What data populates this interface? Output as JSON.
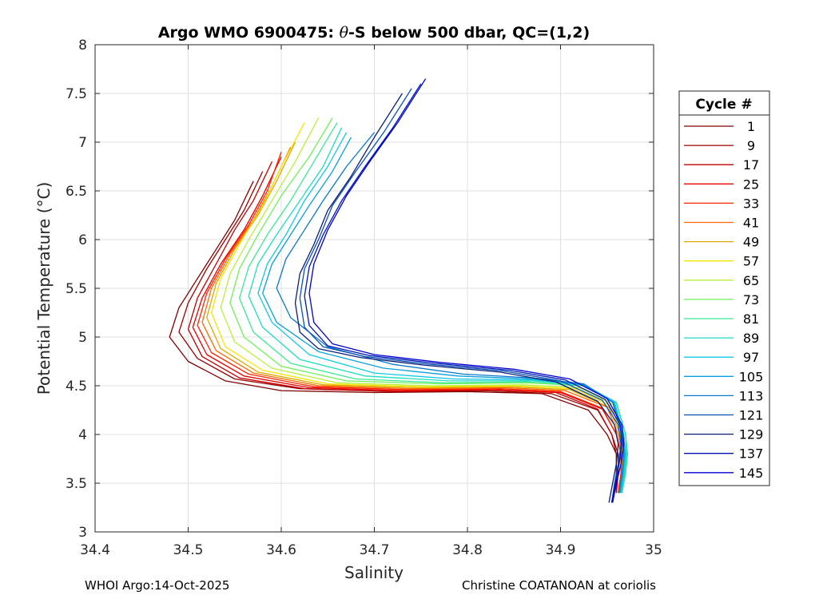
{
  "chart_data": {
    "type": "line",
    "title_prefix": "Argo WMO 6900475: ",
    "title_symbol": "θ",
    "title_suffix": "-S below 500 dbar,  QC=(1,2)",
    "xlabel": "Salinity",
    "ylabel": "Potential Temperature (°C)",
    "xlim": [
      34.4,
      35.0
    ],
    "ylim": [
      3,
      8
    ],
    "xticks": [
      34.4,
      34.5,
      34.6,
      34.7,
      34.8,
      34.9,
      35
    ],
    "xtick_labels": [
      "34.4",
      "34.5",
      "34.6",
      "34.7",
      "34.8",
      "34.9",
      "35"
    ],
    "yticks": [
      3,
      3.5,
      4,
      4.5,
      5,
      5.5,
      6,
      6.5,
      7,
      7.5,
      8
    ],
    "ytick_labels": [
      "3",
      "3.5",
      "4",
      "4.5",
      "5",
      "5.5",
      "6",
      "6.5",
      "7",
      "7.5",
      "8"
    ],
    "grid": true,
    "legend": {
      "title": "Cycle #",
      "location": "right",
      "entries": [
        {
          "label": "1",
          "color": "#7f0000"
        },
        {
          "label": "9",
          "color": "#9c0000"
        },
        {
          "label": "17",
          "color": "#c00000"
        },
        {
          "label": "25",
          "color": "#e60000"
        },
        {
          "label": "33",
          "color": "#ff2400"
        },
        {
          "label": "41",
          "color": "#ff6a00"
        },
        {
          "label": "49",
          "color": "#e0a800"
        },
        {
          "label": "57",
          "color": "#f5e600"
        },
        {
          "label": "65",
          "color": "#b8f03c"
        },
        {
          "label": "73",
          "color": "#6ff05a"
        },
        {
          "label": "81",
          "color": "#3ce896"
        },
        {
          "label": "89",
          "color": "#20dcc0"
        },
        {
          "label": "97",
          "color": "#10c8e6"
        },
        {
          "label": "105",
          "color": "#0aa0dc"
        },
        {
          "label": "113",
          "color": "#0a78c8"
        },
        {
          "label": "121",
          "color": "#0a50b4"
        },
        {
          "label": "129",
          "color": "#0a1e78"
        },
        {
          "label": "137",
          "color": "#0014b4"
        },
        {
          "label": "145",
          "color": "#0000d2"
        }
      ]
    },
    "series": [
      {
        "name": "1",
        "color": "#7f0000",
        "x": [
          34.57,
          34.55,
          34.53,
          34.51,
          34.49,
          34.48,
          34.5,
          34.54,
          34.6,
          34.7,
          34.8,
          34.88,
          34.93,
          34.95,
          34.96,
          34.96,
          34.96
        ],
        "y": [
          6.6,
          6.2,
          5.9,
          5.6,
          5.3,
          5.0,
          4.75,
          4.55,
          4.45,
          4.43,
          4.44,
          4.42,
          4.25,
          4.0,
          3.8,
          3.6,
          3.4
        ]
      },
      {
        "name": "9",
        "color": "#9c0000",
        "x": [
          34.58,
          34.56,
          34.54,
          34.52,
          34.5,
          34.49,
          34.51,
          34.55,
          34.62,
          34.72,
          34.82,
          34.89,
          34.94,
          34.955,
          34.96,
          34.96,
          34.96
        ],
        "y": [
          6.7,
          6.3,
          6.0,
          5.7,
          5.35,
          5.05,
          4.78,
          4.57,
          4.47,
          4.44,
          4.45,
          4.42,
          4.25,
          4.0,
          3.8,
          3.6,
          3.4
        ]
      },
      {
        "name": "17",
        "color": "#c00000",
        "x": [
          34.59,
          34.57,
          34.55,
          34.53,
          34.51,
          34.5,
          34.515,
          34.555,
          34.625,
          34.725,
          34.825,
          34.895,
          34.94,
          34.955,
          34.962,
          34.962,
          34.96
        ],
        "y": [
          6.8,
          6.4,
          6.1,
          5.75,
          5.4,
          5.08,
          4.8,
          4.58,
          4.47,
          4.44,
          4.46,
          4.43,
          4.26,
          4.0,
          3.8,
          3.6,
          3.4
        ]
      },
      {
        "name": "25",
        "color": "#e60000",
        "x": [
          34.6,
          34.58,
          34.56,
          34.535,
          34.515,
          34.505,
          34.52,
          34.56,
          34.63,
          34.73,
          34.83,
          34.9,
          34.945,
          34.96,
          34.965,
          34.965,
          34.962
        ],
        "y": [
          6.85,
          6.45,
          6.1,
          5.75,
          5.4,
          5.1,
          4.82,
          4.6,
          4.48,
          4.45,
          4.46,
          4.43,
          4.26,
          4.0,
          3.8,
          3.6,
          3.4
        ]
      },
      {
        "name": "33",
        "color": "#ff2400",
        "x": [
          34.6,
          34.585,
          34.565,
          34.54,
          34.52,
          34.51,
          34.525,
          34.565,
          34.635,
          34.735,
          34.835,
          34.9,
          34.945,
          34.96,
          34.965,
          34.965,
          34.962
        ],
        "y": [
          6.9,
          6.5,
          6.15,
          5.8,
          5.45,
          5.12,
          4.84,
          4.62,
          4.49,
          4.46,
          4.47,
          4.44,
          4.27,
          4.0,
          3.8,
          3.6,
          3.4
        ]
      },
      {
        "name": "41",
        "color": "#ff6a00",
        "x": [
          34.61,
          34.59,
          34.57,
          34.545,
          34.525,
          34.515,
          34.53,
          34.57,
          34.64,
          34.74,
          34.84,
          34.905,
          34.95,
          34.962,
          34.966,
          34.966,
          34.963
        ],
        "y": [
          6.95,
          6.55,
          6.2,
          5.85,
          5.5,
          5.15,
          4.86,
          4.63,
          4.5,
          4.47,
          4.48,
          4.45,
          4.28,
          4.0,
          3.8,
          3.6,
          3.4
        ]
      },
      {
        "name": "49",
        "color": "#e0a800",
        "x": [
          34.615,
          34.595,
          34.575,
          34.55,
          34.53,
          34.52,
          34.535,
          34.575,
          34.645,
          34.745,
          34.845,
          34.91,
          34.952,
          34.964,
          34.967,
          34.966,
          34.963
        ],
        "y": [
          7.0,
          6.6,
          6.25,
          5.9,
          5.55,
          5.2,
          4.88,
          4.64,
          4.51,
          4.48,
          4.49,
          4.46,
          4.28,
          4.0,
          3.8,
          3.6,
          3.4
        ]
      },
      {
        "name": "57",
        "color": "#f5e600",
        "x": [
          34.625,
          34.6,
          34.58,
          34.555,
          34.535,
          34.525,
          34.54,
          34.58,
          34.65,
          34.75,
          34.85,
          34.915,
          34.955,
          34.965,
          34.968,
          34.967,
          34.964
        ],
        "y": [
          7.2,
          6.75,
          6.35,
          5.95,
          5.6,
          5.25,
          4.9,
          4.66,
          4.52,
          4.49,
          4.5,
          4.47,
          4.29,
          4.0,
          3.8,
          3.6,
          3.4
        ]
      },
      {
        "name": "65",
        "color": "#b8f03c",
        "x": [
          34.64,
          34.615,
          34.59,
          34.565,
          34.545,
          34.535,
          34.55,
          34.59,
          34.66,
          34.76,
          34.86,
          34.92,
          34.958,
          34.968,
          34.97,
          34.969,
          34.965
        ],
        "y": [
          7.25,
          6.8,
          6.4,
          6.0,
          5.65,
          5.3,
          4.95,
          4.68,
          4.53,
          4.5,
          4.51,
          4.48,
          4.3,
          4.0,
          3.8,
          3.6,
          3.4
        ]
      },
      {
        "name": "73",
        "color": "#6ff05a",
        "x": [
          34.655,
          34.63,
          34.6,
          34.575,
          34.555,
          34.545,
          34.56,
          34.6,
          34.67,
          34.77,
          34.865,
          34.925,
          34.96,
          34.97,
          34.972,
          34.97,
          34.966
        ],
        "y": [
          7.25,
          6.85,
          6.45,
          6.05,
          5.7,
          5.35,
          5.0,
          4.7,
          4.55,
          4.52,
          4.53,
          4.5,
          4.32,
          4.0,
          3.8,
          3.6,
          3.4
        ]
      },
      {
        "name": "81",
        "color": "#3ce896",
        "x": [
          34.66,
          34.635,
          34.61,
          34.585,
          34.565,
          34.555,
          34.57,
          34.61,
          34.68,
          34.775,
          34.865,
          34.925,
          34.96,
          34.97,
          34.972,
          34.97,
          34.966
        ],
        "y": [
          7.2,
          6.8,
          6.4,
          6.05,
          5.72,
          5.4,
          5.05,
          4.73,
          4.57,
          4.53,
          4.54,
          4.5,
          4.32,
          4.0,
          3.8,
          3.6,
          3.4
        ]
      },
      {
        "name": "89",
        "color": "#20dcc0",
        "x": [
          34.665,
          34.645,
          34.62,
          34.595,
          34.575,
          34.565,
          34.58,
          34.62,
          34.69,
          34.78,
          34.87,
          34.925,
          34.96,
          34.97,
          34.971,
          34.969,
          34.966
        ],
        "y": [
          7.15,
          6.75,
          6.4,
          6.05,
          5.75,
          5.42,
          5.1,
          4.77,
          4.6,
          4.55,
          4.55,
          4.51,
          4.33,
          4.0,
          3.8,
          3.6,
          3.4
        ]
      },
      {
        "name": "97",
        "color": "#10c8e6",
        "x": [
          34.67,
          34.65,
          34.625,
          34.605,
          34.585,
          34.575,
          34.59,
          34.63,
          34.7,
          34.785,
          34.87,
          34.925,
          34.958,
          34.968,
          34.97,
          34.968,
          34.965
        ],
        "y": [
          7.1,
          6.75,
          6.4,
          6.05,
          5.75,
          5.45,
          5.15,
          4.82,
          4.63,
          4.57,
          4.56,
          4.51,
          4.33,
          4.0,
          3.8,
          3.6,
          3.4
        ]
      },
      {
        "name": "105",
        "color": "#0aa0dc",
        "x": [
          34.675,
          34.655,
          34.63,
          34.61,
          34.59,
          34.58,
          34.595,
          34.64,
          34.71,
          34.79,
          34.87,
          34.925,
          34.957,
          34.967,
          34.969,
          34.967,
          34.964
        ],
        "y": [
          7.05,
          6.7,
          6.35,
          6.05,
          5.75,
          5.45,
          5.15,
          4.85,
          4.68,
          4.6,
          4.57,
          4.51,
          4.33,
          4.0,
          3.8,
          3.6,
          3.4
        ]
      },
      {
        "name": "113",
        "color": "#0a78c8",
        "x": [
          34.7,
          34.67,
          34.645,
          34.625,
          34.605,
          34.595,
          34.61,
          34.65,
          34.72,
          34.795,
          34.87,
          34.925,
          34.956,
          34.966,
          34.968,
          34.966,
          34.963
        ],
        "y": [
          7.1,
          6.75,
          6.4,
          6.1,
          5.8,
          5.5,
          5.2,
          4.9,
          4.72,
          4.62,
          4.58,
          4.52,
          4.33,
          4.0,
          3.8,
          3.6,
          3.4
        ]
      },
      {
        "name": "121",
        "color": "#0a50b4",
        "x": [
          34.74,
          34.71,
          34.68,
          34.655,
          34.64,
          34.625,
          34.62,
          34.625,
          34.645,
          34.69,
          34.76,
          34.84,
          34.9,
          34.945,
          34.962,
          34.965,
          34.962,
          34.958,
          34.955
        ],
        "y": [
          7.55,
          7.1,
          6.7,
          6.35,
          6.0,
          5.7,
          5.4,
          5.1,
          4.9,
          4.8,
          4.72,
          4.65,
          4.55,
          4.35,
          4.1,
          3.9,
          3.7,
          3.5,
          3.3
        ]
      },
      {
        "name": "129",
        "color": "#0a1e78",
        "x": [
          34.73,
          34.7,
          34.675,
          34.65,
          34.635,
          34.62,
          34.615,
          34.62,
          34.64,
          34.685,
          34.755,
          34.835,
          34.895,
          34.94,
          34.958,
          34.962,
          34.96,
          34.956,
          34.952
        ],
        "y": [
          7.5,
          7.05,
          6.65,
          6.3,
          5.95,
          5.65,
          5.35,
          5.05,
          4.88,
          4.79,
          4.71,
          4.64,
          4.54,
          4.34,
          4.1,
          3.9,
          3.7,
          3.5,
          3.3
        ]
      },
      {
        "name": "137",
        "color": "#0014b4",
        "x": [
          34.75,
          34.72,
          34.69,
          34.665,
          34.645,
          34.63,
          34.625,
          34.63,
          34.65,
          34.695,
          34.765,
          34.845,
          34.905,
          34.948,
          34.964,
          34.966,
          34.963,
          34.959,
          34.955
        ],
        "y": [
          7.6,
          7.15,
          6.75,
          6.4,
          6.05,
          5.72,
          5.42,
          5.12,
          4.91,
          4.81,
          4.73,
          4.66,
          4.56,
          4.36,
          4.1,
          3.9,
          3.7,
          3.5,
          3.3
        ]
      },
      {
        "name": "145",
        "color": "#0000d2",
        "x": [
          34.755,
          34.725,
          34.695,
          34.67,
          34.65,
          34.635,
          34.63,
          34.635,
          34.655,
          34.7,
          34.77,
          34.85,
          34.91,
          34.95,
          34.966,
          34.968,
          34.965,
          34.96,
          34.956
        ],
        "y": [
          7.65,
          7.2,
          6.8,
          6.45,
          6.1,
          5.75,
          5.45,
          5.15,
          4.93,
          4.82,
          4.74,
          4.67,
          4.57,
          4.37,
          4.1,
          3.9,
          3.7,
          3.5,
          3.3
        ]
      }
    ]
  },
  "footer": {
    "left": "WHOI Argo:14-Oct-2025",
    "right": "Christine COATANOAN at coriolis"
  }
}
